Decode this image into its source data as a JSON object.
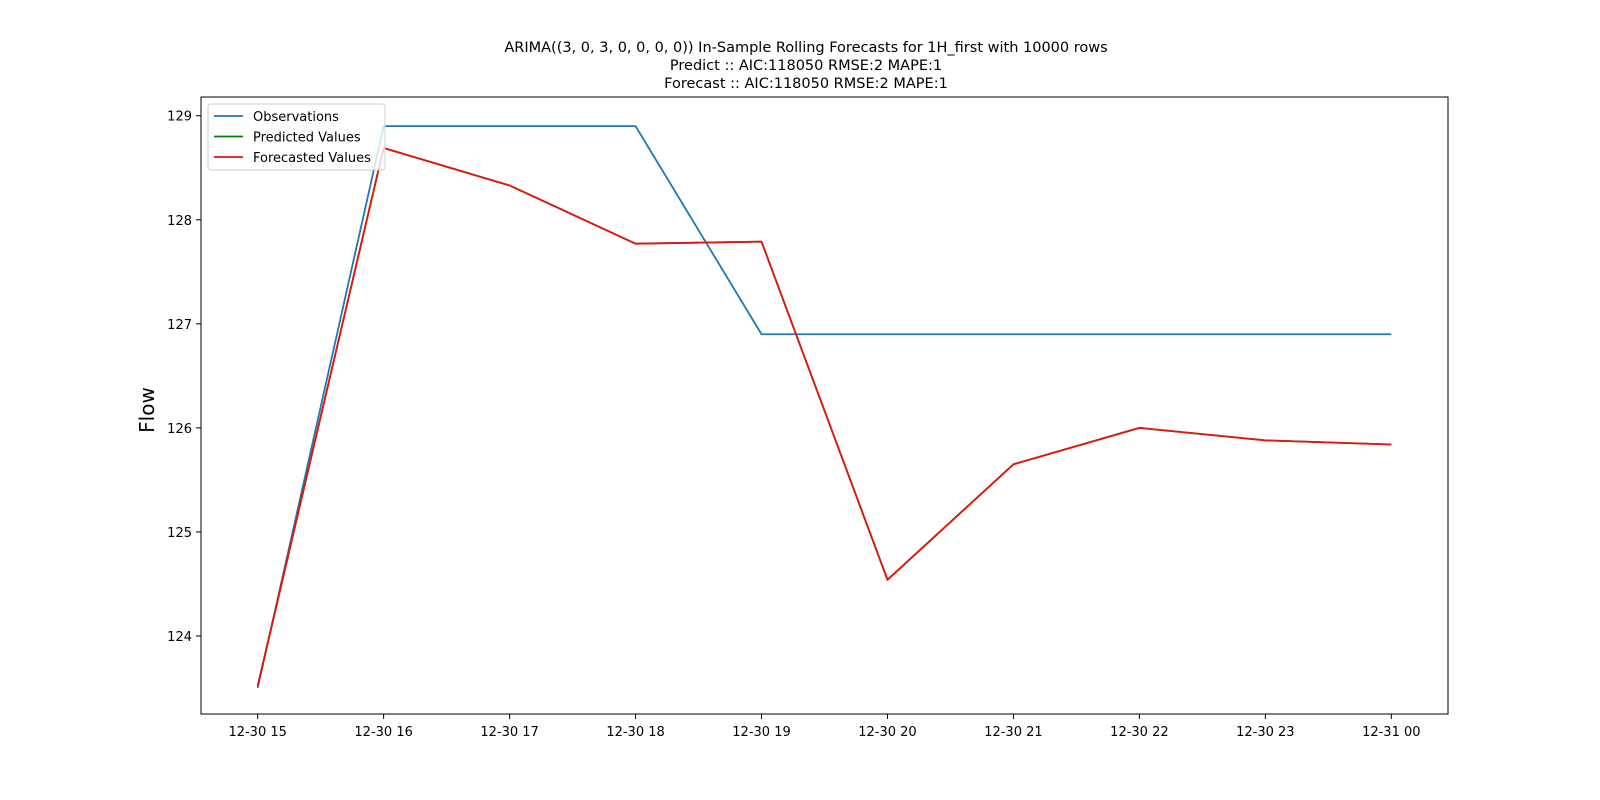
{
  "chart_data": {
    "type": "line",
    "title_lines": [
      "ARIMA((3, 0, 3, 0, 0, 0, 0)) In-Sample Rolling Forecasts for 1H_first with 10000 rows",
      "Predict :: AIC:118050 RMSE:2 MAPE:1",
      "Forecast :: AIC:118050 RMSE:2 MAPE:1"
    ],
    "xlabel": "",
    "ylabel": "Flow",
    "x": [
      "12-30 15",
      "12-30 16",
      "12-30 17",
      "12-30 18",
      "12-30 19",
      "12-30 20",
      "12-30 21",
      "12-30 22",
      "12-30 23",
      "12-31 00"
    ],
    "x_index_range": [
      -0.45,
      9.45
    ],
    "ylim": [
      123.25,
      129.18
    ],
    "yticks": [
      124,
      125,
      126,
      127,
      128,
      129
    ],
    "grid": false,
    "legend_position": "top-left",
    "series": [
      {
        "name": "Observations",
        "color": "#1f77b4",
        "values": [
          123.5,
          128.9,
          128.9,
          128.9,
          126.9,
          126.9,
          126.9,
          126.9,
          126.9,
          126.9
        ]
      },
      {
        "name": "Predicted Values",
        "color": "#008000",
        "values": [
          123.52,
          128.69,
          128.33,
          127.77,
          127.79,
          124.54,
          125.65,
          126.0,
          125.88,
          125.84
        ]
      },
      {
        "name": "Forecasted Values",
        "color": "#e8130c",
        "values": [
          123.52,
          128.69,
          128.33,
          127.77,
          127.79,
          124.54,
          125.65,
          126.0,
          125.88,
          125.84
        ]
      }
    ]
  }
}
